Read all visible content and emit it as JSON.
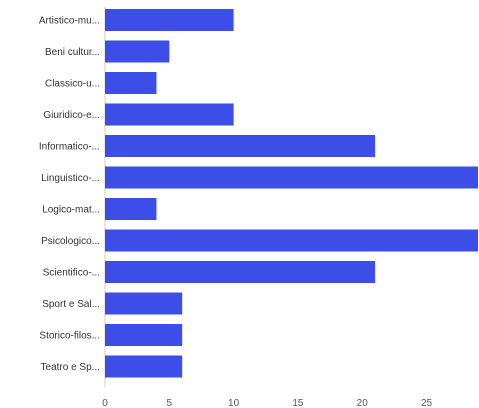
{
  "chart_data": {
    "type": "bar",
    "orientation": "horizontal",
    "categories": [
      "Artistico-mu...",
      "Beni cultur...",
      "Classico-u...",
      "Giuridico-e...",
      "Informatico-...",
      "Linguistico-...",
      "Logico-mat...",
      "Psicologico...",
      "Scientifico-...",
      "Sport e Sal...",
      "Storico-filos...",
      "Teatro e Sp..."
    ],
    "values": [
      10,
      5,
      4,
      10,
      21,
      29,
      4,
      29,
      21,
      6,
      6,
      6
    ],
    "x_ticks": [
      "0",
      "5",
      "10",
      "15",
      "20",
      "25"
    ],
    "xlim": [
      0,
      29
    ],
    "bar_color": "#3d4ee8",
    "grid": false,
    "legend": "none"
  }
}
